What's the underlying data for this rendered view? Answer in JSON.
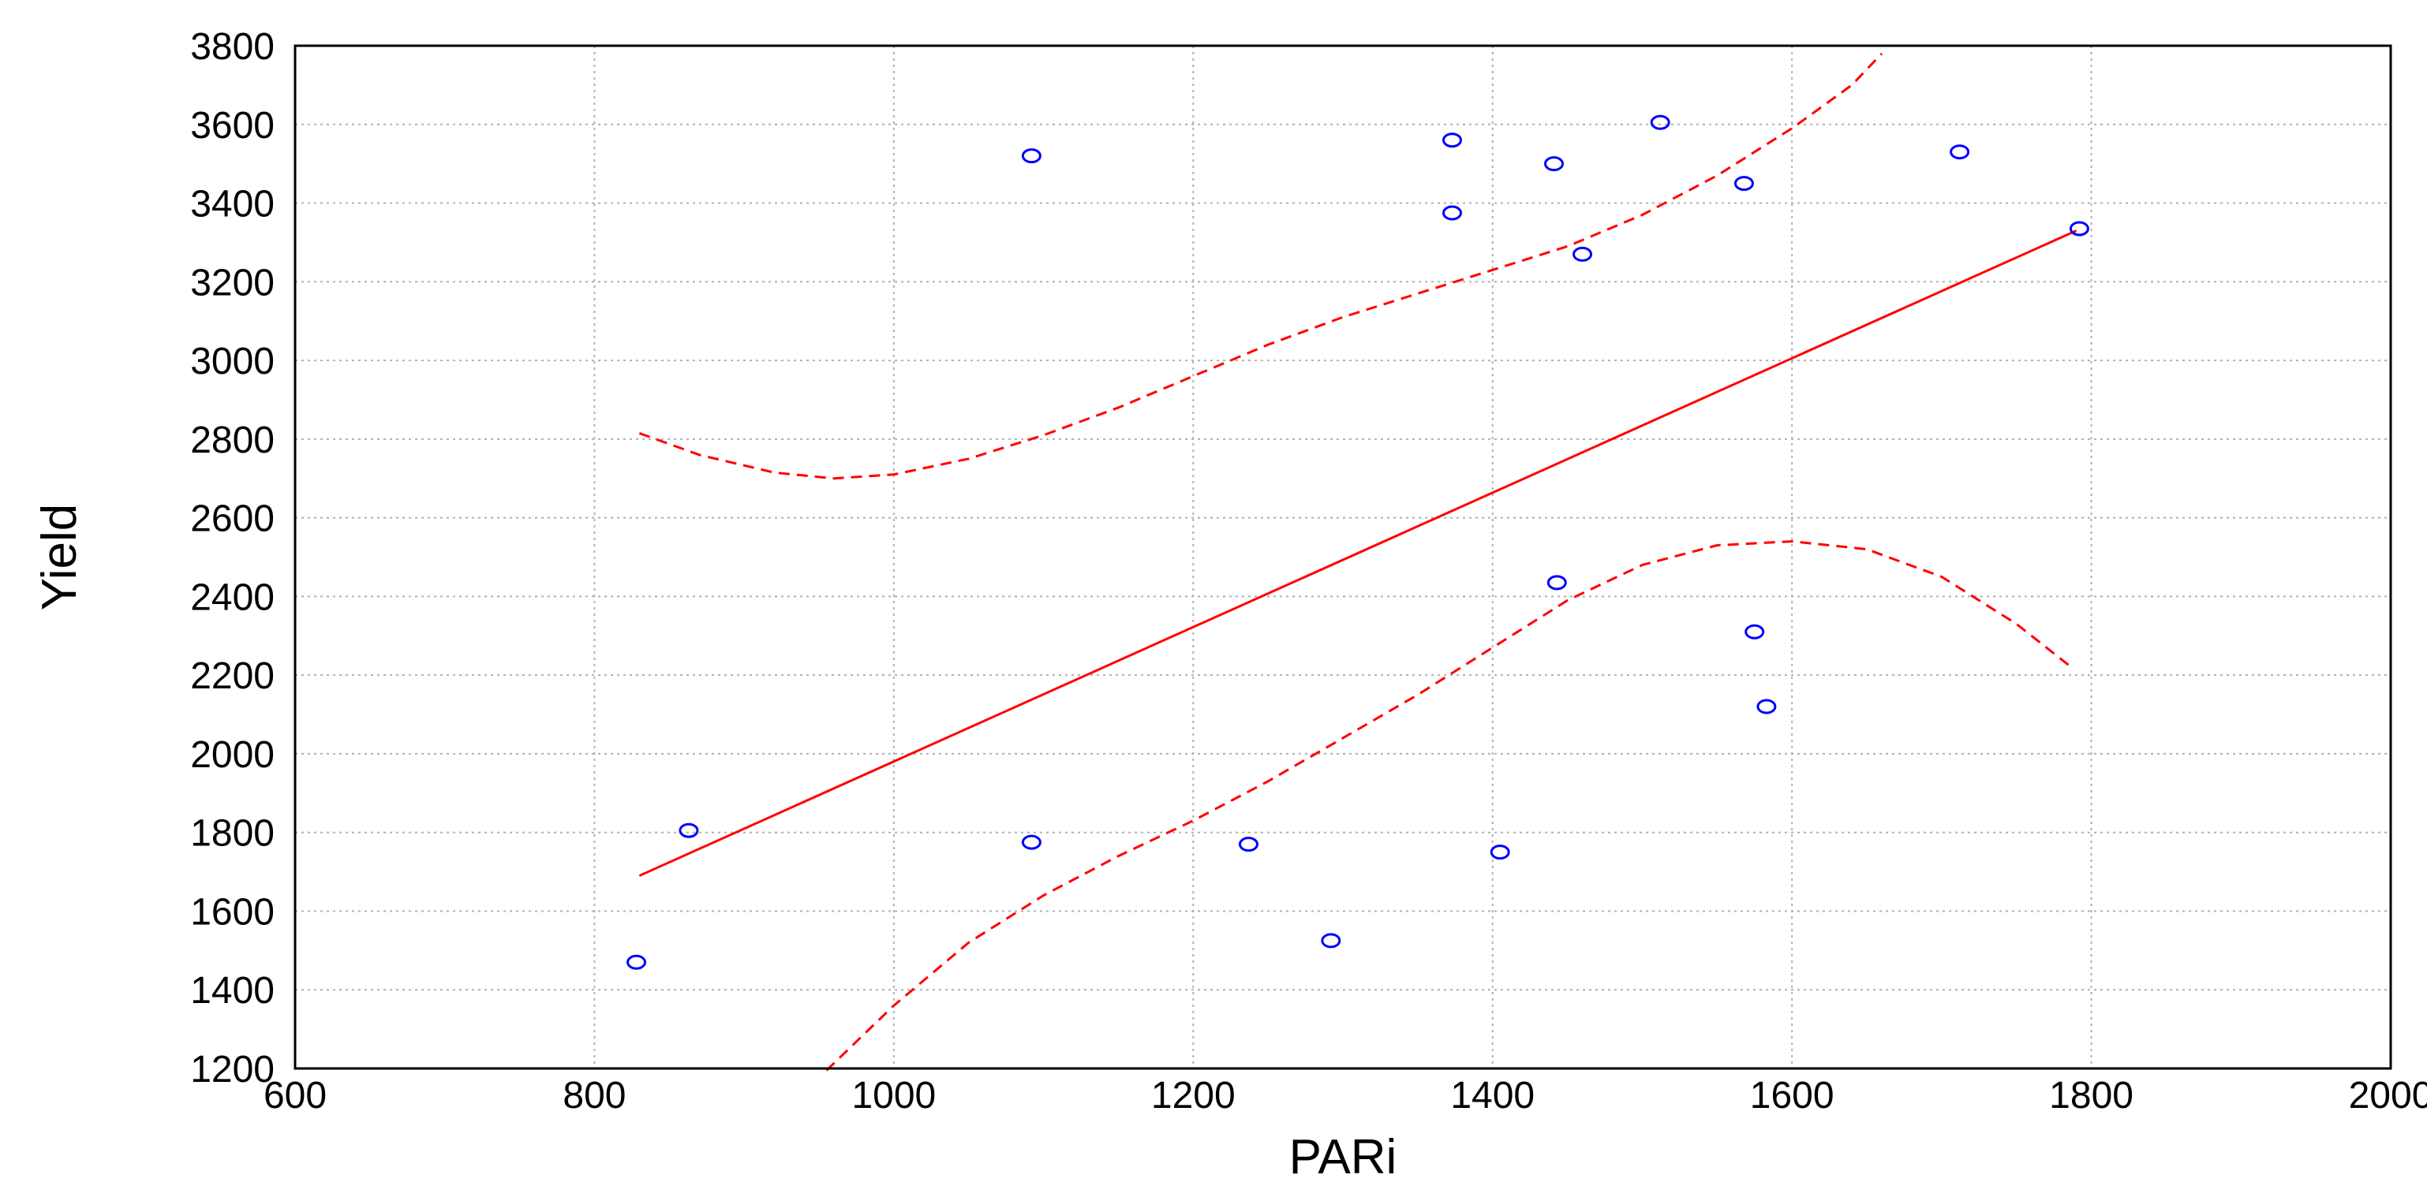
{
  "chart_data": {
    "type": "scatter",
    "title": "",
    "xlabel": "PARi",
    "ylabel": "Yield",
    "xlim": [
      600,
      2000
    ],
    "ylim": [
      1200,
      3800
    ],
    "x_ticks": [
      600,
      800,
      1000,
      1200,
      1400,
      1600,
      1800,
      2000
    ],
    "y_ticks": [
      1200,
      1400,
      1600,
      1800,
      2000,
      2200,
      2400,
      2600,
      2800,
      3000,
      3200,
      3400,
      3600,
      3800
    ],
    "grid": true,
    "points": {
      "marker": "open-circle",
      "color": "#0000ff",
      "x": [
        828,
        863,
        1092,
        1092,
        1237,
        1292,
        1373,
        1373,
        1405,
        1441,
        1443,
        1460,
        1512,
        1568,
        1575,
        1583,
        1712,
        1792
      ],
      "y": [
        1470,
        1805,
        3520,
        1775,
        1770,
        1525,
        3560,
        3375,
        1750,
        3500,
        2435,
        3270,
        3605,
        3450,
        2310,
        2120,
        3530,
        3335
      ]
    },
    "fit_line": {
      "style": "solid",
      "color": "#ff0000",
      "x": [
        830,
        1790
      ],
      "y": [
        1690,
        3330
      ]
    },
    "confidence_upper": {
      "style": "dashed",
      "color": "#ff0000",
      "x": [
        830,
        870,
        920,
        960,
        1000,
        1050,
        1100,
        1150,
        1200,
        1250,
        1300,
        1350,
        1400,
        1450,
        1500,
        1550,
        1600,
        1640,
        1660
      ],
      "y": [
        2815,
        2760,
        2715,
        2700,
        2710,
        2750,
        2810,
        2880,
        2960,
        3040,
        3110,
        3170,
        3230,
        3290,
        3370,
        3470,
        3590,
        3700,
        3780
      ]
    },
    "confidence_lower": {
      "style": "dashed",
      "color": "#ff0000",
      "x": [
        955,
        1000,
        1050,
        1100,
        1150,
        1200,
        1250,
        1300,
        1350,
        1400,
        1450,
        1500,
        1550,
        1600,
        1650,
        1700,
        1750,
        1785
      ],
      "y": [
        1195,
        1360,
        1520,
        1640,
        1740,
        1830,
        1930,
        2040,
        2150,
        2270,
        2390,
        2480,
        2530,
        2540,
        2520,
        2450,
        2330,
        2225
      ]
    }
  }
}
